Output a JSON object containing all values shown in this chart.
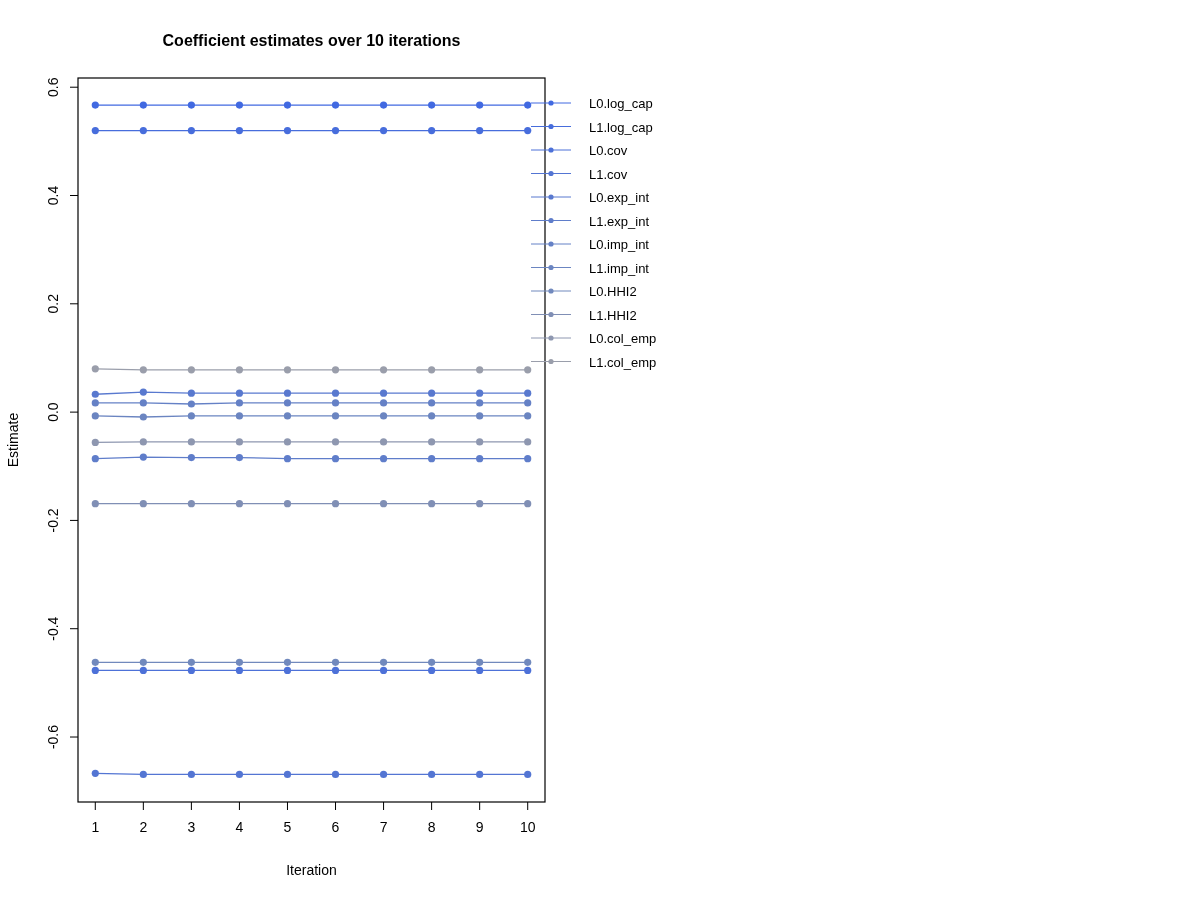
{
  "chart_data": {
    "type": "line",
    "title": "Coefficient estimates over 10 iterations",
    "xlabel": "Iteration",
    "ylabel": "Estimate",
    "x": [
      1,
      2,
      3,
      4,
      5,
      6,
      7,
      8,
      9,
      10
    ],
    "xlim": [
      0.64,
      10.36
    ],
    "xticks": [
      1,
      2,
      3,
      4,
      5,
      6,
      7,
      8,
      9,
      10
    ],
    "ylim": [
      -0.72,
      0.617
    ],
    "yticks": [
      {
        "value": -0.6,
        "label": "-0.6"
      },
      {
        "value": -0.4,
        "label": "-0.4"
      },
      {
        "value": -0.2,
        "label": "-0.2"
      },
      {
        "value": 0,
        "label": "0.0"
      },
      {
        "value": 0.2,
        "label": "0.2"
      },
      {
        "value": 0.4,
        "label": "0.4"
      },
      {
        "value": 0.6,
        "label": "0.6"
      }
    ],
    "marker": "circle",
    "grid": false,
    "legend": "top right",
    "series": [
      {
        "name": "L0.log_cap",
        "color": "#4169e1",
        "values": [
          0.567,
          0.567,
          0.567,
          0.567,
          0.567,
          0.567,
          0.567,
          0.567,
          0.567,
          0.567
        ]
      },
      {
        "name": "L1.log_cap",
        "color": "#476ddc",
        "values": [
          0.52,
          0.52,
          0.52,
          0.52,
          0.52,
          0.52,
          0.52,
          0.52,
          0.52,
          0.52
        ]
      },
      {
        "name": "L0.cov",
        "color": "#4d71d8",
        "values": [
          -0.477,
          -0.477,
          -0.477,
          -0.477,
          -0.477,
          -0.477,
          -0.477,
          -0.477,
          -0.477,
          -0.477
        ]
      },
      {
        "name": "L1.cov",
        "color": "#5375d3",
        "values": [
          -0.667,
          -0.669,
          -0.669,
          -0.669,
          -0.669,
          -0.669,
          -0.669,
          -0.669,
          -0.669,
          -0.669
        ]
      },
      {
        "name": "L0.exp_int",
        "color": "#5979cf",
        "values": [
          0.033,
          0.037,
          0.035,
          0.035,
          0.035,
          0.035,
          0.035,
          0.035,
          0.035,
          0.035
        ]
      },
      {
        "name": "L1.exp_int",
        "color": "#5f7dca",
        "values": [
          -0.086,
          -0.083,
          -0.084,
          -0.084,
          -0.086,
          -0.086,
          -0.086,
          -0.086,
          -0.086,
          -0.086
        ]
      },
      {
        "name": "L0.imp_int",
        "color": "#6581c6",
        "values": [
          0.017,
          0.017,
          0.015,
          0.017,
          0.017,
          0.017,
          0.017,
          0.017,
          0.017,
          0.017
        ]
      },
      {
        "name": "L1.imp_int",
        "color": "#6b85c1",
        "values": [
          -0.007,
          -0.009,
          -0.007,
          -0.007,
          -0.007,
          -0.007,
          -0.007,
          -0.007,
          -0.007,
          -0.007
        ]
      },
      {
        "name": "L0.HHI2",
        "color": "#7189bd",
        "values": [
          -0.462,
          -0.462,
          -0.462,
          -0.462,
          -0.462,
          -0.462,
          -0.462,
          -0.462,
          -0.462,
          -0.462
        ]
      },
      {
        "name": "L1.HHI2",
        "color": "#808fb5",
        "values": [
          -0.169,
          -0.169,
          -0.169,
          -0.169,
          -0.169,
          -0.169,
          -0.169,
          -0.169,
          -0.169,
          -0.169
        ]
      },
      {
        "name": "L0.col_emp",
        "color": "#8e97b0",
        "values": [
          -0.056,
          -0.055,
          -0.055,
          -0.055,
          -0.055,
          -0.055,
          -0.055,
          -0.055,
          -0.055,
          -0.055
        ]
      },
      {
        "name": "L1.col_emp",
        "color": "#9a9eab",
        "values": [
          0.08,
          0.078,
          0.078,
          0.078,
          0.078,
          0.078,
          0.078,
          0.078,
          0.078,
          0.078
        ]
      }
    ]
  }
}
